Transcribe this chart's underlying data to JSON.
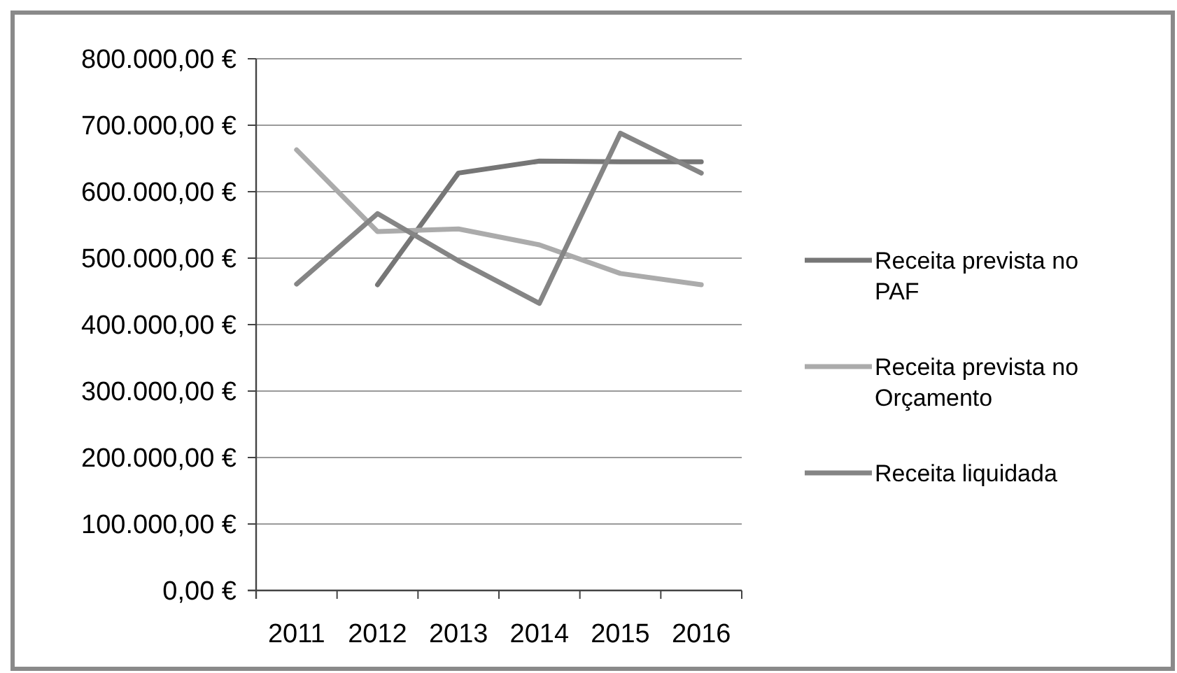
{
  "chart_data": {
    "type": "line",
    "categories": [
      "2011",
      "2012",
      "2013",
      "2014",
      "2015",
      "2016"
    ],
    "series": [
      {
        "name": "Receita prevista no PAF",
        "color": "#767676",
        "values": [
          null,
          460000,
          628000,
          646000,
          645000,
          645000
        ]
      },
      {
        "name": "Receita prevista no Orçamento",
        "color": "#ababab",
        "values": [
          663000,
          540000,
          544000,
          520000,
          477000,
          460000
        ]
      },
      {
        "name": "Receita liquidada",
        "color": "#858585",
        "values": [
          461000,
          567000,
          496000,
          432000,
          688000,
          628000
        ]
      }
    ],
    "ylim": [
      0,
      800000
    ],
    "yticks": [
      {
        "value": 0,
        "label": "0,00 €"
      },
      {
        "value": 100000,
        "label": "100.000,00 €"
      },
      {
        "value": 200000,
        "label": "200.000,00 €"
      },
      {
        "value": 300000,
        "label": "300.000,00 €"
      },
      {
        "value": 400000,
        "label": "400.000,00 €"
      },
      {
        "value": 500000,
        "label": "500.000,00 €"
      },
      {
        "value": 600000,
        "label": "600.000,00 €"
      },
      {
        "value": 700000,
        "label": "700.000,00 €"
      },
      {
        "value": 800000,
        "label": "800.000,00 €"
      }
    ],
    "grid": "y",
    "legend": "right",
    "marker": "none",
    "line_style": "solid"
  }
}
